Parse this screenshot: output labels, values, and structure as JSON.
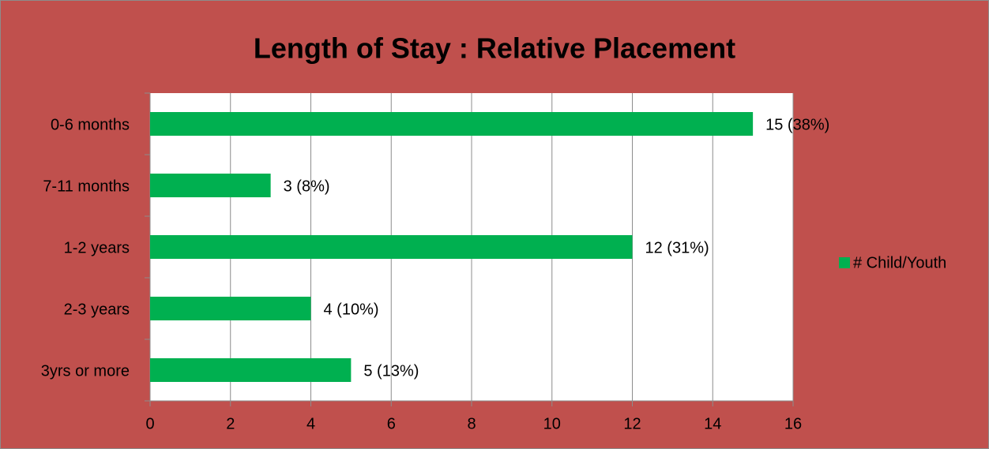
{
  "chart_data": {
    "type": "bar",
    "orientation": "horizontal",
    "title": "Length of Stay : Relative Placement",
    "categories": [
      "0-6 months",
      "7-11 months",
      "1-2 years",
      "2-3 years",
      "3yrs or more"
    ],
    "series": [
      {
        "name": "# Child/Youth",
        "color": "#00b050",
        "values": [
          15,
          3,
          12,
          4,
          5
        ],
        "value_labels": [
          "15 (38%)",
          "3 (8%)",
          "12 (31%)",
          "4 (10%)",
          "5 (13%)"
        ]
      }
    ],
    "xlim": [
      0,
      16
    ],
    "xticks": [
      0,
      2,
      4,
      6,
      8,
      10,
      12,
      14,
      16
    ],
    "grid": true,
    "legend": "right"
  }
}
